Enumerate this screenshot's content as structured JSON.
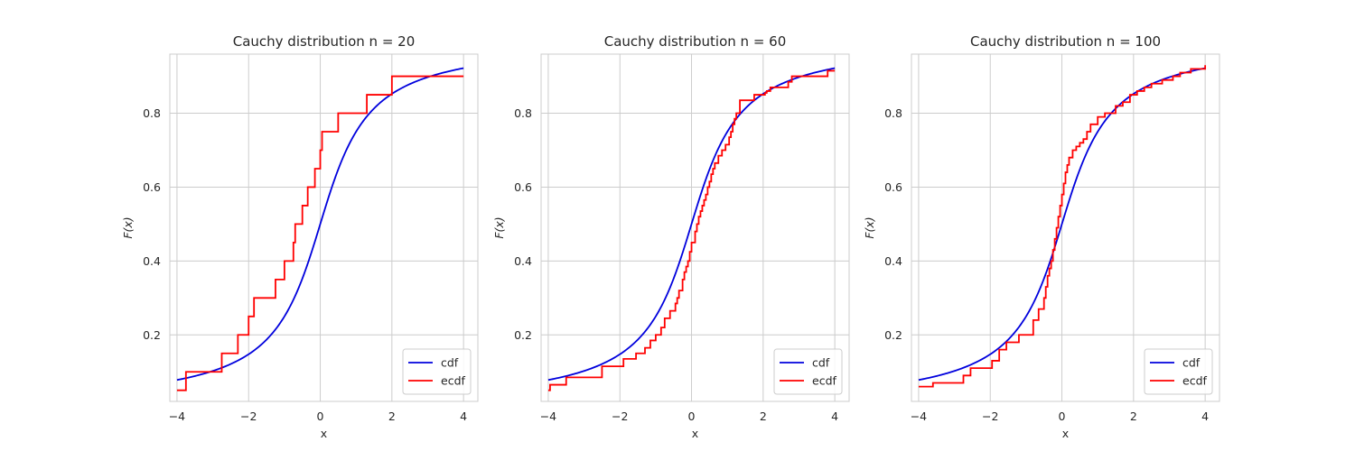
{
  "figure": {
    "background": "#ffffff",
    "grid_color": "#cccccc",
    "spine_color": "#cccccc"
  },
  "chart_data": [
    {
      "type": "line",
      "title": "Cauchy distribution n = 20",
      "xlabel": "x",
      "ylabel": "F(x)",
      "xlim": [
        -4.2,
        4.4
      ],
      "ylim": [
        0.02,
        0.96
      ],
      "xticks": [
        -4,
        -2,
        0,
        2,
        4
      ],
      "yticks": [
        0.2,
        0.4,
        0.6,
        0.8
      ],
      "xtick_labels": [
        "−4",
        "−2",
        "0",
        "2",
        "4"
      ],
      "ytick_labels": [
        "0.2",
        "0.4",
        "0.6",
        "0.8"
      ],
      "grid": true,
      "legend": "lower right",
      "series": [
        {
          "name": "cdf",
          "color": "#0000dd",
          "kind": "function",
          "function": "cauchy_cdf",
          "x_range": [
            -4,
            4
          ]
        },
        {
          "name": "ecdf",
          "color": "#ff0000",
          "kind": "step",
          "x": [
            -4.0,
            -3.75,
            -2.75,
            -2.3,
            -2.0,
            -1.85,
            -1.25,
            -1.0,
            -0.75,
            -0.7,
            -0.5,
            -0.35,
            -0.15,
            0.0,
            0.05,
            0.2,
            0.5,
            1.3,
            2.0,
            4.0
          ],
          "y": [
            0.05,
            0.1,
            0.15,
            0.2,
            0.25,
            0.3,
            0.35,
            0.4,
            0.45,
            0.5,
            0.55,
            0.6,
            0.65,
            0.7,
            0.75,
            0.75,
            0.8,
            0.85,
            0.9,
            0.9
          ]
        }
      ]
    },
    {
      "type": "line",
      "title": "Cauchy distribution n = 60",
      "xlabel": "x",
      "ylabel": "F(x)",
      "xlim": [
        -4.2,
        4.4
      ],
      "ylim": [
        0.02,
        0.96
      ],
      "xticks": [
        -4,
        -2,
        0,
        2,
        4
      ],
      "yticks": [
        0.2,
        0.4,
        0.6,
        0.8
      ],
      "xtick_labels": [
        "−4",
        "−2",
        "0",
        "2",
        "4"
      ],
      "ytick_labels": [
        "0.2",
        "0.4",
        "0.6",
        "0.8"
      ],
      "grid": true,
      "legend": "lower right",
      "series": [
        {
          "name": "cdf",
          "color": "#0000dd",
          "kind": "function",
          "function": "cauchy_cdf",
          "x_range": [
            -4,
            4
          ]
        },
        {
          "name": "ecdf",
          "color": "#ff0000",
          "kind": "step",
          "x": [
            -4.0,
            -3.95,
            -3.5,
            -2.5,
            -1.9,
            -1.55,
            -1.3,
            -1.15,
            -1.0,
            -0.85,
            -0.75,
            -0.6,
            -0.45,
            -0.4,
            -0.35,
            -0.25,
            -0.2,
            -0.15,
            -0.1,
            -0.05,
            0.0,
            0.1,
            0.15,
            0.2,
            0.25,
            0.3,
            0.35,
            0.4,
            0.45,
            0.5,
            0.55,
            0.6,
            0.65,
            0.75,
            0.85,
            0.95,
            1.05,
            1.1,
            1.15,
            1.2,
            1.25,
            1.35,
            1.75,
            2.05,
            2.1,
            2.2,
            2.7,
            2.8,
            3.8,
            4.0
          ],
          "y": [
            0.05,
            0.065,
            0.085,
            0.115,
            0.135,
            0.15,
            0.165,
            0.185,
            0.2,
            0.22,
            0.245,
            0.265,
            0.285,
            0.3,
            0.32,
            0.35,
            0.37,
            0.385,
            0.4,
            0.425,
            0.45,
            0.48,
            0.5,
            0.52,
            0.535,
            0.55,
            0.565,
            0.58,
            0.6,
            0.615,
            0.635,
            0.65,
            0.665,
            0.685,
            0.7,
            0.715,
            0.735,
            0.75,
            0.77,
            0.785,
            0.8,
            0.835,
            0.85,
            0.855,
            0.86,
            0.87,
            0.885,
            0.9,
            0.915,
            0.915
          ]
        }
      ]
    },
    {
      "type": "line",
      "title": "Cauchy distribution n = 100",
      "xlabel": "x",
      "ylabel": "F(x)",
      "xlim": [
        -4.2,
        4.4
      ],
      "ylim": [
        0.02,
        0.96
      ],
      "xticks": [
        -4,
        -2,
        0,
        2,
        4
      ],
      "yticks": [
        0.2,
        0.4,
        0.6,
        0.8
      ],
      "xtick_labels": [
        "−4",
        "−2",
        "0",
        "2",
        "4"
      ],
      "ytick_labels": [
        "0.2",
        "0.4",
        "0.6",
        "0.8"
      ],
      "grid": true,
      "legend": "lower right",
      "series": [
        {
          "name": "cdf",
          "color": "#0000dd",
          "kind": "function",
          "function": "cauchy_cdf",
          "x_range": [
            -4,
            4
          ]
        },
        {
          "name": "ecdf",
          "color": "#ff0000",
          "kind": "step",
          "x": [
            -4.0,
            -3.6,
            -2.75,
            -2.55,
            -1.95,
            -1.75,
            -1.55,
            -1.2,
            -0.8,
            -0.65,
            -0.5,
            -0.45,
            -0.4,
            -0.35,
            -0.3,
            -0.25,
            -0.2,
            -0.15,
            -0.1,
            -0.05,
            0.0,
            0.05,
            0.1,
            0.15,
            0.2,
            0.3,
            0.4,
            0.5,
            0.6,
            0.7,
            0.8,
            1.0,
            1.2,
            1.5,
            1.7,
            1.9,
            2.1,
            2.3,
            2.5,
            2.8,
            3.1,
            3.3,
            3.6,
            4.0
          ],
          "y": [
            0.06,
            0.07,
            0.09,
            0.11,
            0.13,
            0.16,
            0.18,
            0.2,
            0.24,
            0.27,
            0.3,
            0.33,
            0.36,
            0.38,
            0.4,
            0.43,
            0.46,
            0.49,
            0.52,
            0.55,
            0.58,
            0.61,
            0.64,
            0.66,
            0.68,
            0.7,
            0.71,
            0.72,
            0.73,
            0.75,
            0.77,
            0.79,
            0.8,
            0.82,
            0.83,
            0.85,
            0.86,
            0.87,
            0.88,
            0.89,
            0.9,
            0.91,
            0.92,
            0.93
          ]
        }
      ]
    }
  ]
}
